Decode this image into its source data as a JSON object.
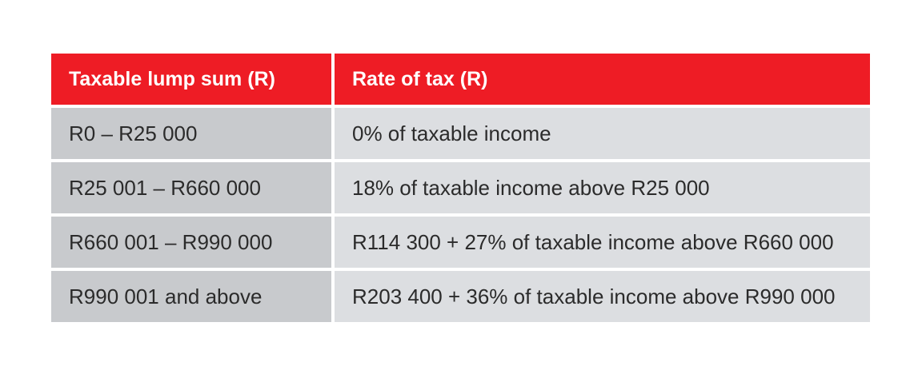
{
  "table": {
    "headers": [
      "Taxable lump sum (R)",
      "Rate of tax (R)"
    ],
    "rows": [
      [
        "R0 – R25 000",
        "0% of taxable income"
      ],
      [
        "R25 001 – R660 000",
        "18% of taxable income above R25 000"
      ],
      [
        "R660 001 – R990 000",
        "R114 300 + 27% of taxable income above R660 000"
      ],
      [
        "R990 001 and above",
        "R203 400 + 36% of taxable income above R990 000"
      ]
    ]
  },
  "colors": {
    "header_bg": "#ee1c25",
    "header_text": "#ffffff",
    "first_col_bg": "#c8cacd",
    "second_col_bg": "#dcdee1",
    "body_text": "#2b2b2b"
  }
}
